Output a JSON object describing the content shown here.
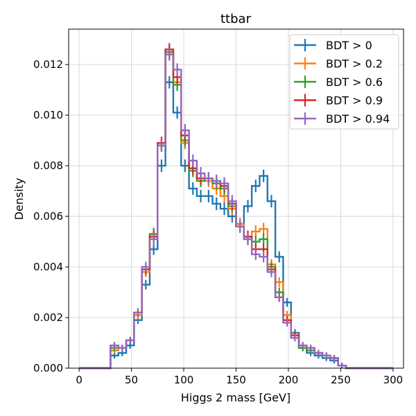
{
  "chart_data": {
    "type": "line",
    "title": "ttbar",
    "xlabel": "Higgs 2 mass [GeV]",
    "ylabel": "Density",
    "xlim": [
      -10,
      310
    ],
    "ylim": [
      0,
      0.0134
    ],
    "xticks": [
      0,
      50,
      100,
      150,
      200,
      250,
      300
    ],
    "xtick_labels": [
      "0",
      "50",
      "100",
      "150",
      "200",
      "250",
      "300"
    ],
    "yticks": [
      0,
      0.002,
      0.004,
      0.006,
      0.008,
      0.01,
      0.012
    ],
    "ytick_labels": [
      "0.000",
      "0.002",
      "0.004",
      "0.006",
      "0.008",
      "0.010",
      "0.012"
    ],
    "grid": true,
    "legend_position": "top-right",
    "bin_edges": [
      0,
      7.5,
      15,
      22.5,
      30,
      37.5,
      45,
      52.5,
      60,
      67.5,
      75,
      82.5,
      90,
      97.5,
      105,
      112.5,
      120,
      127.5,
      135,
      142.5,
      150,
      157.5,
      165,
      172.5,
      180,
      187.5,
      195,
      202.5,
      210,
      217.5,
      225,
      232.5,
      240,
      247.5,
      255,
      262.5,
      270,
      277.5,
      285,
      292.5,
      300
    ],
    "series": [
      {
        "name": "BDT > 0",
        "color": "#1f77b4",
        "values": [
          0,
          0,
          0,
          0,
          0.0005,
          0.0006,
          0.0009,
          0.0019,
          0.0033,
          0.0047,
          0.008,
          0.0113,
          0.0101,
          0.008,
          0.0071,
          0.0068,
          0.0068,
          0.0065,
          0.0063,
          0.006,
          0.0057,
          0.0064,
          0.0072,
          0.0076,
          0.0066,
          0.0044,
          0.0026,
          0.0014,
          0.0008,
          0.0006,
          0.0005,
          0.0004,
          0.0003,
          0.0001,
          0,
          0,
          0,
          0,
          0,
          0
        ]
      },
      {
        "name": "BDT > 0.2",
        "color": "#ff7f0e",
        "values": [
          0,
          0,
          0,
          0,
          0.0007,
          0.0008,
          0.0011,
          0.0021,
          0.0038,
          0.0053,
          0.0088,
          0.0124,
          0.0113,
          0.0089,
          0.0079,
          0.0075,
          0.0074,
          0.0071,
          0.0068,
          0.0063,
          0.0057,
          0.0052,
          0.0054,
          0.0055,
          0.0041,
          0.0034,
          0.0021,
          0.0013,
          0.0008,
          0.0007,
          0.0006,
          0.0005,
          0.0004,
          0.0001,
          0,
          0,
          0,
          0,
          0,
          0
        ]
      },
      {
        "name": "BDT > 0.6",
        "color": "#2ca02c",
        "values": [
          0,
          0,
          0,
          0,
          0.0008,
          0.0008,
          0.0011,
          0.0022,
          0.0039,
          0.0053,
          0.0088,
          0.0125,
          0.0112,
          0.009,
          0.0078,
          0.0074,
          0.0075,
          0.0073,
          0.0071,
          0.0064,
          0.0056,
          0.0051,
          0.005,
          0.0051,
          0.004,
          0.003,
          0.0019,
          0.0012,
          0.0008,
          0.0007,
          0.0006,
          0.0005,
          0.0004,
          0.0001,
          0,
          0,
          0,
          0,
          0,
          0
        ]
      },
      {
        "name": "BDT > 0.9",
        "color": "#d62728",
        "values": [
          0,
          0,
          0,
          0,
          0.0009,
          0.0008,
          0.0011,
          0.0022,
          0.0039,
          0.0052,
          0.0089,
          0.0126,
          0.0115,
          0.0092,
          0.0079,
          0.0075,
          0.0075,
          0.0074,
          0.0072,
          0.0065,
          0.0056,
          0.0052,
          0.0047,
          0.0047,
          0.0039,
          0.0028,
          0.0019,
          0.0013,
          0.0009,
          0.0008,
          0.0006,
          0.0005,
          0.0004,
          0.0001,
          0,
          0,
          0,
          0,
          0,
          0
        ]
      },
      {
        "name": "BDT > 0.94",
        "color": "#9467bd",
        "values": [
          0,
          0,
          0,
          0,
          0.0009,
          0.0008,
          0.0011,
          0.0022,
          0.004,
          0.0051,
          0.0088,
          0.0124,
          0.0118,
          0.0094,
          0.0082,
          0.0077,
          0.0075,
          0.0074,
          0.0073,
          0.0066,
          0.0056,
          0.0051,
          0.0045,
          0.0044,
          0.0038,
          0.0028,
          0.0018,
          0.0012,
          0.0009,
          0.0008,
          0.0006,
          0.0005,
          0.0004,
          0.0001,
          0,
          0,
          0,
          0,
          0,
          0
        ]
      }
    ]
  }
}
